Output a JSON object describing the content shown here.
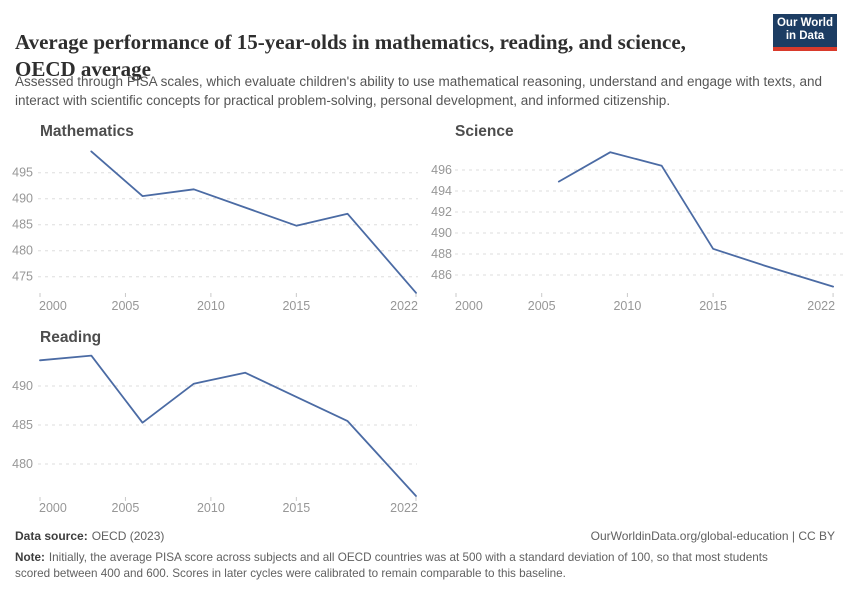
{
  "header": {
    "title": "Average performance of 15-year-olds in mathematics, reading, and science, OECD average",
    "subtitle": "Assessed through PISA scales, which evaluate children's ability to use mathematical reasoning, understand and engage with texts, and interact with scientific concepts for practical problem-solving, personal development, and informed citizenship.",
    "logo": {
      "line1": "Our World",
      "line2": "in Data"
    }
  },
  "colors": {
    "line": "#4b6ba4",
    "grid": "#dedede",
    "tick_mark": "#c9c9c9",
    "tick_label": "#979797",
    "logo_bg": "#1d3d63",
    "logo_bar": "#d93a2b"
  },
  "chart_data": [
    {
      "type": "line",
      "title": "Mathematics",
      "xlim": [
        2000,
        2022
      ],
      "ylim": [
        472,
        499
      ],
      "grid": true,
      "x_ticks": [
        "2000",
        "2005",
        "2010",
        "2015",
        "2022"
      ],
      "y_ticks": [
        495,
        490,
        485,
        480,
        475
      ],
      "series": [
        {
          "name": "Mathematics",
          "x": [
            2003,
            2006,
            2009,
            2012,
            2015,
            2018,
            2022
          ],
          "y": [
            499.1,
            490.5,
            491.8,
            488.3,
            484.8,
            487.1,
            471.9
          ]
        }
      ]
    },
    {
      "type": "line",
      "title": "Science",
      "xlim": [
        2000,
        2022
      ],
      "ylim": [
        485,
        498
      ],
      "grid": true,
      "x_ticks": [
        "2000",
        "2005",
        "2010",
        "2015",
        "2022"
      ],
      "y_ticks": [
        496,
        494,
        492,
        490,
        488,
        486
      ],
      "series": [
        {
          "name": "Science",
          "x": [
            2006,
            2009,
            2012,
            2015,
            2018,
            2022
          ],
          "y": [
            494.9,
            497.7,
            496.4,
            488.5,
            486.9,
            484.9
          ]
        }
      ]
    },
    {
      "type": "line",
      "title": "Reading",
      "xlim": [
        2000,
        2022
      ],
      "ylim": [
        476,
        494
      ],
      "grid": true,
      "x_ticks": [
        "2000",
        "2005",
        "2010",
        "2015",
        "2022"
      ],
      "y_ticks": [
        490,
        485,
        480
      ],
      "series": [
        {
          "name": "Reading",
          "x": [
            2000,
            2003,
            2006,
            2009,
            2012,
            2015,
            2018,
            2022
          ],
          "y": [
            493.3,
            493.9,
            485.3,
            490.3,
            491.7,
            488.6,
            485.5,
            475.9
          ]
        }
      ]
    }
  ],
  "footer": {
    "source_label": "Data source:",
    "source_value": "OECD (2023)",
    "credit": "OurWorldinData.org/global-education | CC BY",
    "note_label": "Note:",
    "note_text": "Initially, the average PISA score across subjects and all OECD countries was at 500 with a standard deviation of 100, so that most students scored between 400 and 600. Scores in later cycles were calibrated to remain comparable to this baseline."
  }
}
